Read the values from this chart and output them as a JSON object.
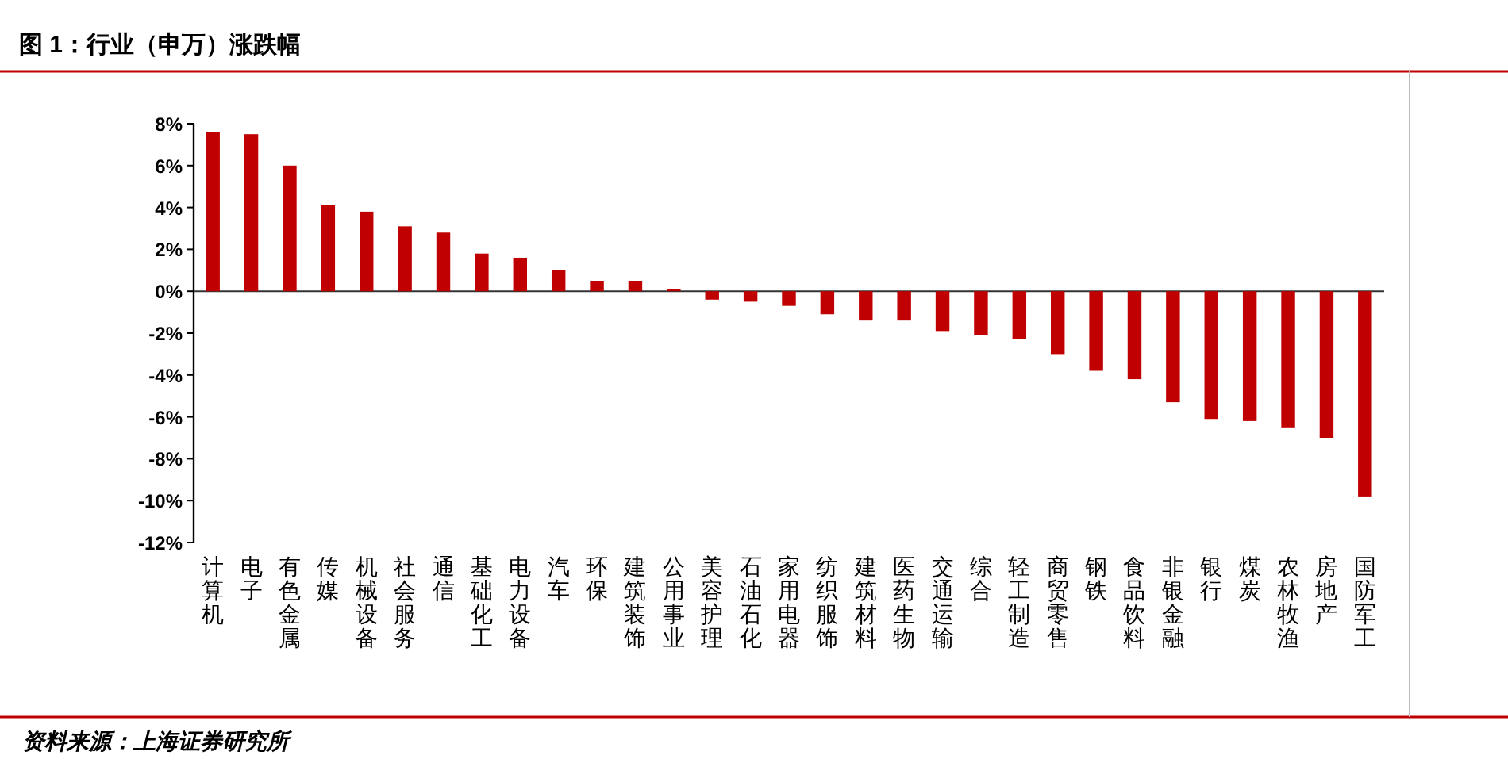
{
  "chart_data": {
    "type": "bar",
    "title": "图 1：行业（申万）涨跌幅",
    "categories": [
      "计算机",
      "电子",
      "有色金属",
      "传媒",
      "机械设备",
      "社会服务",
      "通信",
      "基础化工",
      "电力设备",
      "汽车",
      "环保",
      "建筑装饰",
      "公用事业",
      "美容护理",
      "石油石化",
      "家用电器",
      "纺织服饰",
      "建筑材料",
      "医药生物",
      "交通运输",
      "综合",
      "轻工制造",
      "商贸零售",
      "钢铁",
      "食品饮料",
      "非银金融",
      "银行",
      "煤炭",
      "农林牧渔",
      "房地产",
      "国防军工"
    ],
    "values": [
      7.6,
      7.5,
      6.0,
      4.1,
      3.8,
      3.1,
      2.8,
      1.8,
      1.6,
      1.0,
      0.5,
      0.5,
      0.1,
      -0.4,
      -0.5,
      -0.7,
      -1.1,
      -1.4,
      -1.4,
      -1.9,
      -2.1,
      -2.3,
      -3.0,
      -3.8,
      -4.2,
      -5.3,
      -6.1,
      -6.2,
      -6.5,
      -7.0,
      -9.8
    ],
    "color": "#c00000",
    "ylim": [
      -12,
      8
    ],
    "yticks": [
      {
        "value": -12,
        "label": "-12%"
      },
      {
        "value": -10,
        "label": "-10%"
      },
      {
        "value": -8,
        "label": "-8%"
      },
      {
        "value": -6,
        "label": "-6%"
      },
      {
        "value": -4,
        "label": "-4%"
      },
      {
        "value": -2,
        "label": "-2%"
      },
      {
        "value": 0,
        "label": "0%"
      },
      {
        "value": 2,
        "label": "2%"
      },
      {
        "value": 4,
        "label": "4%"
      },
      {
        "value": 6,
        "label": "6%"
      },
      {
        "value": 8,
        "label": "8%"
      }
    ],
    "annotations": [
      "资料来源：上海证券研究所"
    ]
  }
}
